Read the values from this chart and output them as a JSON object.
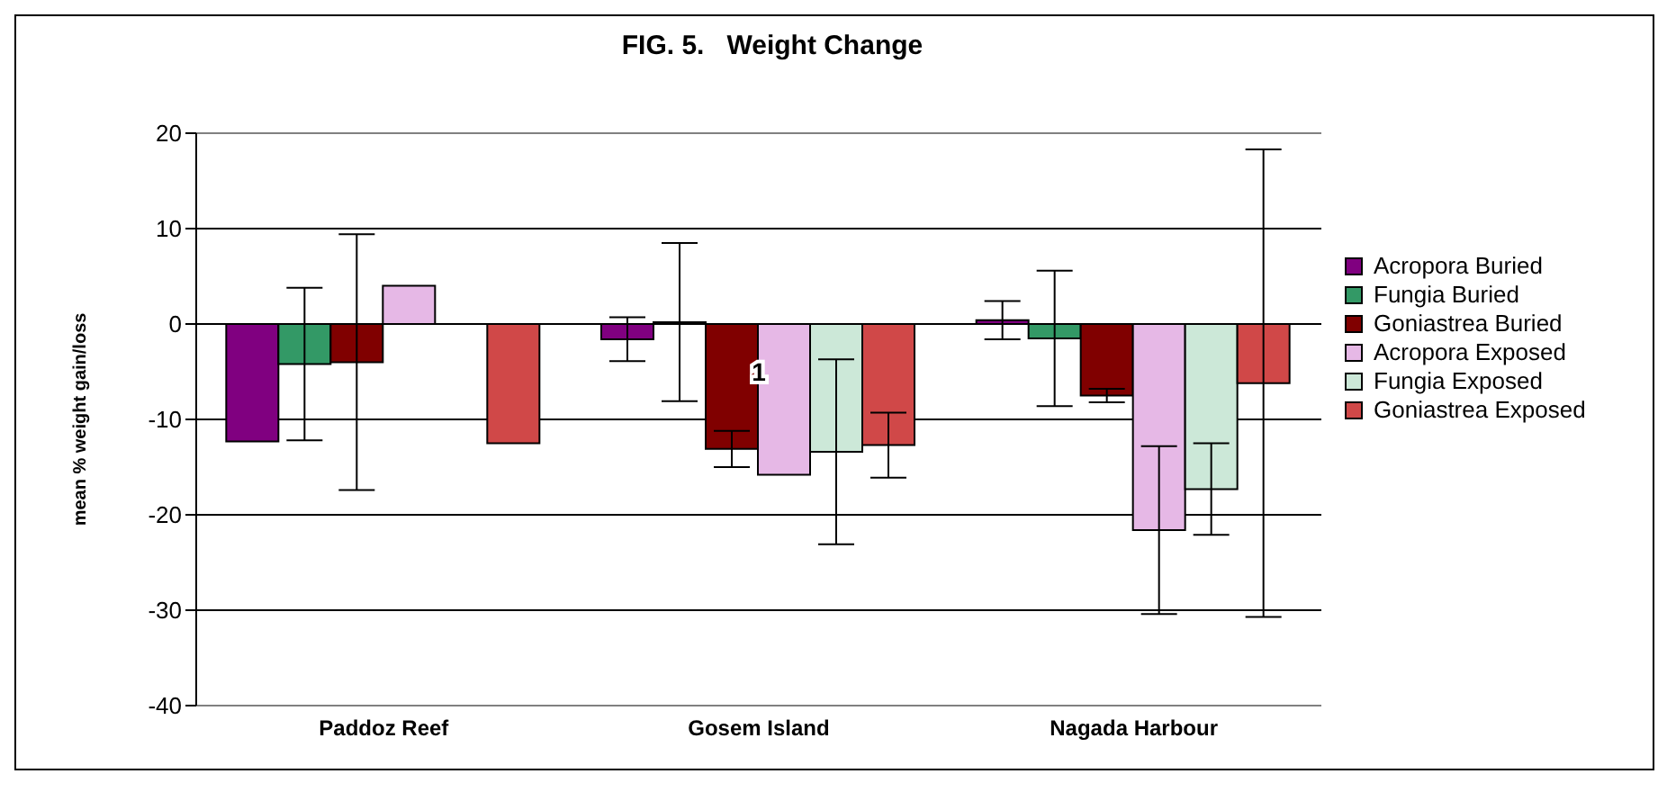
{
  "chart_data": {
    "type": "bar",
    "title": "FIG. 5.   Weight Change",
    "ylabel": "mean % weight gain/loss",
    "categories": [
      "Paddoz Reef",
      "Gosem Island",
      "Nagada Harbour"
    ],
    "series": [
      {
        "name": "Acropora Buried",
        "color": "#800080",
        "values": [
          -12.3,
          -1.6,
          0.4
        ],
        "errors": [
          null,
          2.3,
          2
        ]
      },
      {
        "name": "Fungia Buried",
        "color": "#339966",
        "values": [
          -4.2,
          0.2,
          -1.5
        ],
        "errors": [
          8,
          8.3,
          7.1
        ]
      },
      {
        "name": "Goniastrea Buried",
        "color": "#800000",
        "values": [
          -4,
          -13.1,
          -7.5
        ],
        "errors": [
          13.4,
          1.9,
          0.7
        ]
      },
      {
        "name": "Acropora Exposed",
        "color": "#e6b8e6",
        "values": [
          4,
          -15.8,
          -21.6
        ],
        "errors": [
          null,
          null,
          8.8
        ]
      },
      {
        "name": "Fungia Exposed",
        "color": "#cce8d8",
        "values": [
          null,
          -13.4,
          -17.3
        ],
        "errors": [
          null,
          9.7,
          4.8
        ]
      },
      {
        "name": "Goniastrea Exposed",
        "color": "#d04848",
        "values": [
          -12.5,
          -12.7,
          -6.2
        ],
        "errors": [
          null,
          3.4,
          24.5
        ]
      }
    ],
    "ylim": [
      -40,
      20
    ],
    "yticks": [
      -40,
      -30,
      -20,
      -10,
      0,
      10,
      20
    ],
    "grid": "y",
    "legend": "right",
    "annotations": [
      {
        "text": "1",
        "x": "Gosem Island",
        "y": -5
      }
    ]
  }
}
